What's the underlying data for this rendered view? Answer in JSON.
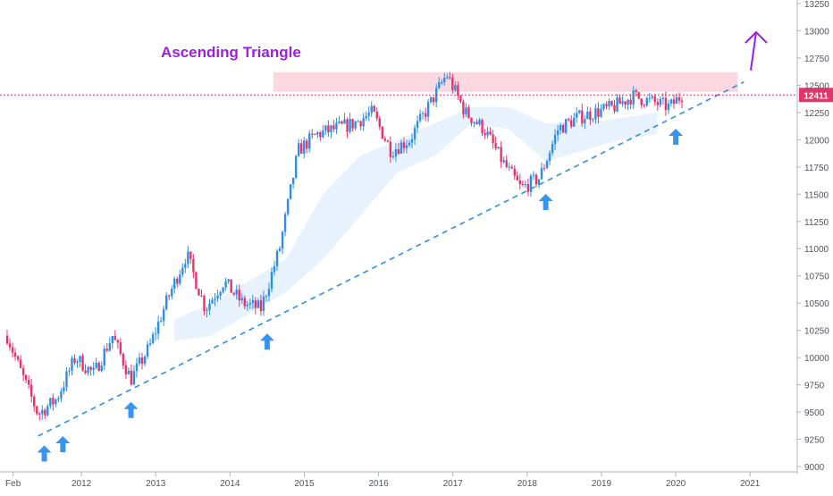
{
  "chart_data": {
    "type": "candlestick",
    "title": "Ascending Triangle",
    "title_color": "#9b1fe0",
    "x_tick_labels": [
      "Feb",
      "2012",
      "2013",
      "2014",
      "2015",
      "2016",
      "2017",
      "2018",
      "2019",
      "2020",
      "2021"
    ],
    "y_tick_labels": [
      "9000",
      "9250",
      "9500",
      "9750",
      "10000",
      "10250",
      "10500",
      "10750",
      "11000",
      "11250",
      "11500",
      "11750",
      "12000",
      "12250",
      "12500",
      "12750",
      "13000",
      "13250"
    ],
    "ylim": [
      9000,
      13250
    ],
    "xlim": [
      "2011-01",
      "2021-04"
    ],
    "grid": false,
    "up_color": "#2d8ee8",
    "down_color": "#e8336a",
    "last_price": {
      "label": "12411",
      "value": 12411,
      "color": "#e8336a"
    },
    "close_series": [
      {
        "date": "2011-01",
        "close": 10200
      },
      {
        "date": "2011-03",
        "close": 9900
      },
      {
        "date": "2011-06",
        "close": 9480
      },
      {
        "date": "2011-09",
        "close": 9620
      },
      {
        "date": "2011-12",
        "close": 10000
      },
      {
        "date": "2012-03",
        "close": 9850
      },
      {
        "date": "2012-06",
        "close": 10200
      },
      {
        "date": "2012-09",
        "close": 9800
      },
      {
        "date": "2012-12",
        "close": 10100
      },
      {
        "date": "2013-03",
        "close": 10550
      },
      {
        "date": "2013-06",
        "close": 10950
      },
      {
        "date": "2013-09",
        "close": 10450
      },
      {
        "date": "2013-12",
        "close": 10700
      },
      {
        "date": "2014-03",
        "close": 10500
      },
      {
        "date": "2014-06",
        "close": 10450
      },
      {
        "date": "2014-09",
        "close": 11000
      },
      {
        "date": "2014-12",
        "close": 11900
      },
      {
        "date": "2015-03",
        "close": 12050
      },
      {
        "date": "2015-06",
        "close": 12100
      },
      {
        "date": "2015-09",
        "close": 12150
      },
      {
        "date": "2015-12",
        "close": 12250
      },
      {
        "date": "2016-03",
        "close": 11900
      },
      {
        "date": "2016-06",
        "close": 12000
      },
      {
        "date": "2016-09",
        "close": 12300
      },
      {
        "date": "2016-12",
        "close": 12600
      },
      {
        "date": "2017-03",
        "close": 12250
      },
      {
        "date": "2017-06",
        "close": 12100
      },
      {
        "date": "2017-09",
        "close": 11800
      },
      {
        "date": "2017-12",
        "close": 11550
      },
      {
        "date": "2018-03",
        "close": 11650
      },
      {
        "date": "2018-06",
        "close": 12100
      },
      {
        "date": "2018-09",
        "close": 12200
      },
      {
        "date": "2018-12",
        "close": 12250
      },
      {
        "date": "2019-03",
        "close": 12300
      },
      {
        "date": "2019-06",
        "close": 12400
      },
      {
        "date": "2019-09",
        "close": 12350
      },
      {
        "date": "2019-12",
        "close": 12300
      },
      {
        "date": "2020-02",
        "close": 12411
      }
    ],
    "resistance_zone": {
      "from": "2014-08",
      "to": "2020-11",
      "low": 12440,
      "high": 12620,
      "color": "#f9d3de"
    },
    "support_trendline": {
      "start": {
        "date": "2011-06",
        "value": 9280
      },
      "end": {
        "date": "2020-12",
        "value": 12530
      },
      "color": "#2d8ee8",
      "style": "dashed"
    },
    "touch_arrows": [
      "2011-07",
      "2011-10",
      "2012-09",
      "2014-07",
      "2018-04",
      "2020-01"
    ],
    "breakout_arrow": {
      "color": "#9b1fe0",
      "direction": "up"
    },
    "cloud_color": "#d8eafb"
  }
}
